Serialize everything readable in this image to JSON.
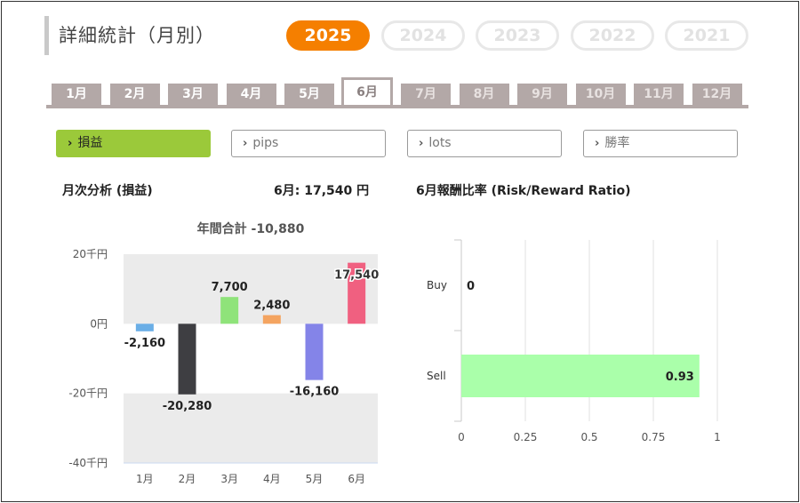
{
  "page_title": "詳細統計（月別）",
  "years": [
    {
      "label": "2025",
      "active": true
    },
    {
      "label": "2024",
      "active": false
    },
    {
      "label": "2023",
      "active": false
    },
    {
      "label": "2022",
      "active": false
    },
    {
      "label": "2021",
      "active": false
    }
  ],
  "months": [
    {
      "label": "1月",
      "state": "past"
    },
    {
      "label": "2月",
      "state": "past"
    },
    {
      "label": "3月",
      "state": "past"
    },
    {
      "label": "4月",
      "state": "past"
    },
    {
      "label": "5月",
      "state": "past"
    },
    {
      "label": "6月",
      "state": "active"
    },
    {
      "label": "7月",
      "state": "future"
    },
    {
      "label": "8月",
      "state": "future"
    },
    {
      "label": "9月",
      "state": "future"
    },
    {
      "label": "10月",
      "state": "future"
    },
    {
      "label": "11月",
      "state": "future"
    },
    {
      "label": "12月",
      "state": "future"
    }
  ],
  "metrics": [
    {
      "label": "損益",
      "active": true
    },
    {
      "label": "pips",
      "active": false
    },
    {
      "label": "lots",
      "active": false
    },
    {
      "label": "勝率",
      "active": false
    }
  ],
  "monthly_section": {
    "title": "月次分析 (損益)",
    "current_value_label": "6月:  17,540 円"
  },
  "ratio_section": {
    "title": "6月報酬比率 (Risk/Reward Ratio)"
  },
  "colors": {
    "accent_orange": "#f57f00",
    "tab_gray": "#b3a8a7",
    "active_green": "#9bc93a"
  },
  "chart_data": [
    {
      "type": "bar",
      "title": "年間合計 -10,880",
      "categories": [
        "1月",
        "2月",
        "3月",
        "4月",
        "5月",
        "6月"
      ],
      "values": [
        -2160,
        -20280,
        7700,
        2480,
        -16160,
        17540
      ],
      "value_labels": [
        "-2,160",
        "-20,280",
        "7,700",
        "2,480",
        "-16,160",
        "17,540"
      ],
      "bar_colors": [
        "#6aaee6",
        "#3e3e42",
        "#8fe37a",
        "#f4a460",
        "#8484e8",
        "#f06080"
      ],
      "ylim": [
        -40000,
        20000
      ],
      "yticks": [
        20000,
        0,
        -20000,
        -40000
      ],
      "ytick_labels": [
        "20千円",
        "0円",
        "-20千円",
        "-40千円"
      ],
      "band_background": "#ebebeb",
      "grid": false
    },
    {
      "type": "bar",
      "orientation": "horizontal",
      "categories": [
        "Buy",
        "Sell"
      ],
      "values": [
        0,
        0.93
      ],
      "value_labels": [
        "0",
        "0.93"
      ],
      "bar_color": "#aaffaa",
      "xlim": [
        0,
        1
      ],
      "xticks": [
        0,
        0.25,
        0.5,
        0.75,
        1
      ],
      "xtick_labels": [
        "0",
        "0.25",
        "0.5",
        "0.75",
        "1"
      ],
      "grid": true
    }
  ]
}
